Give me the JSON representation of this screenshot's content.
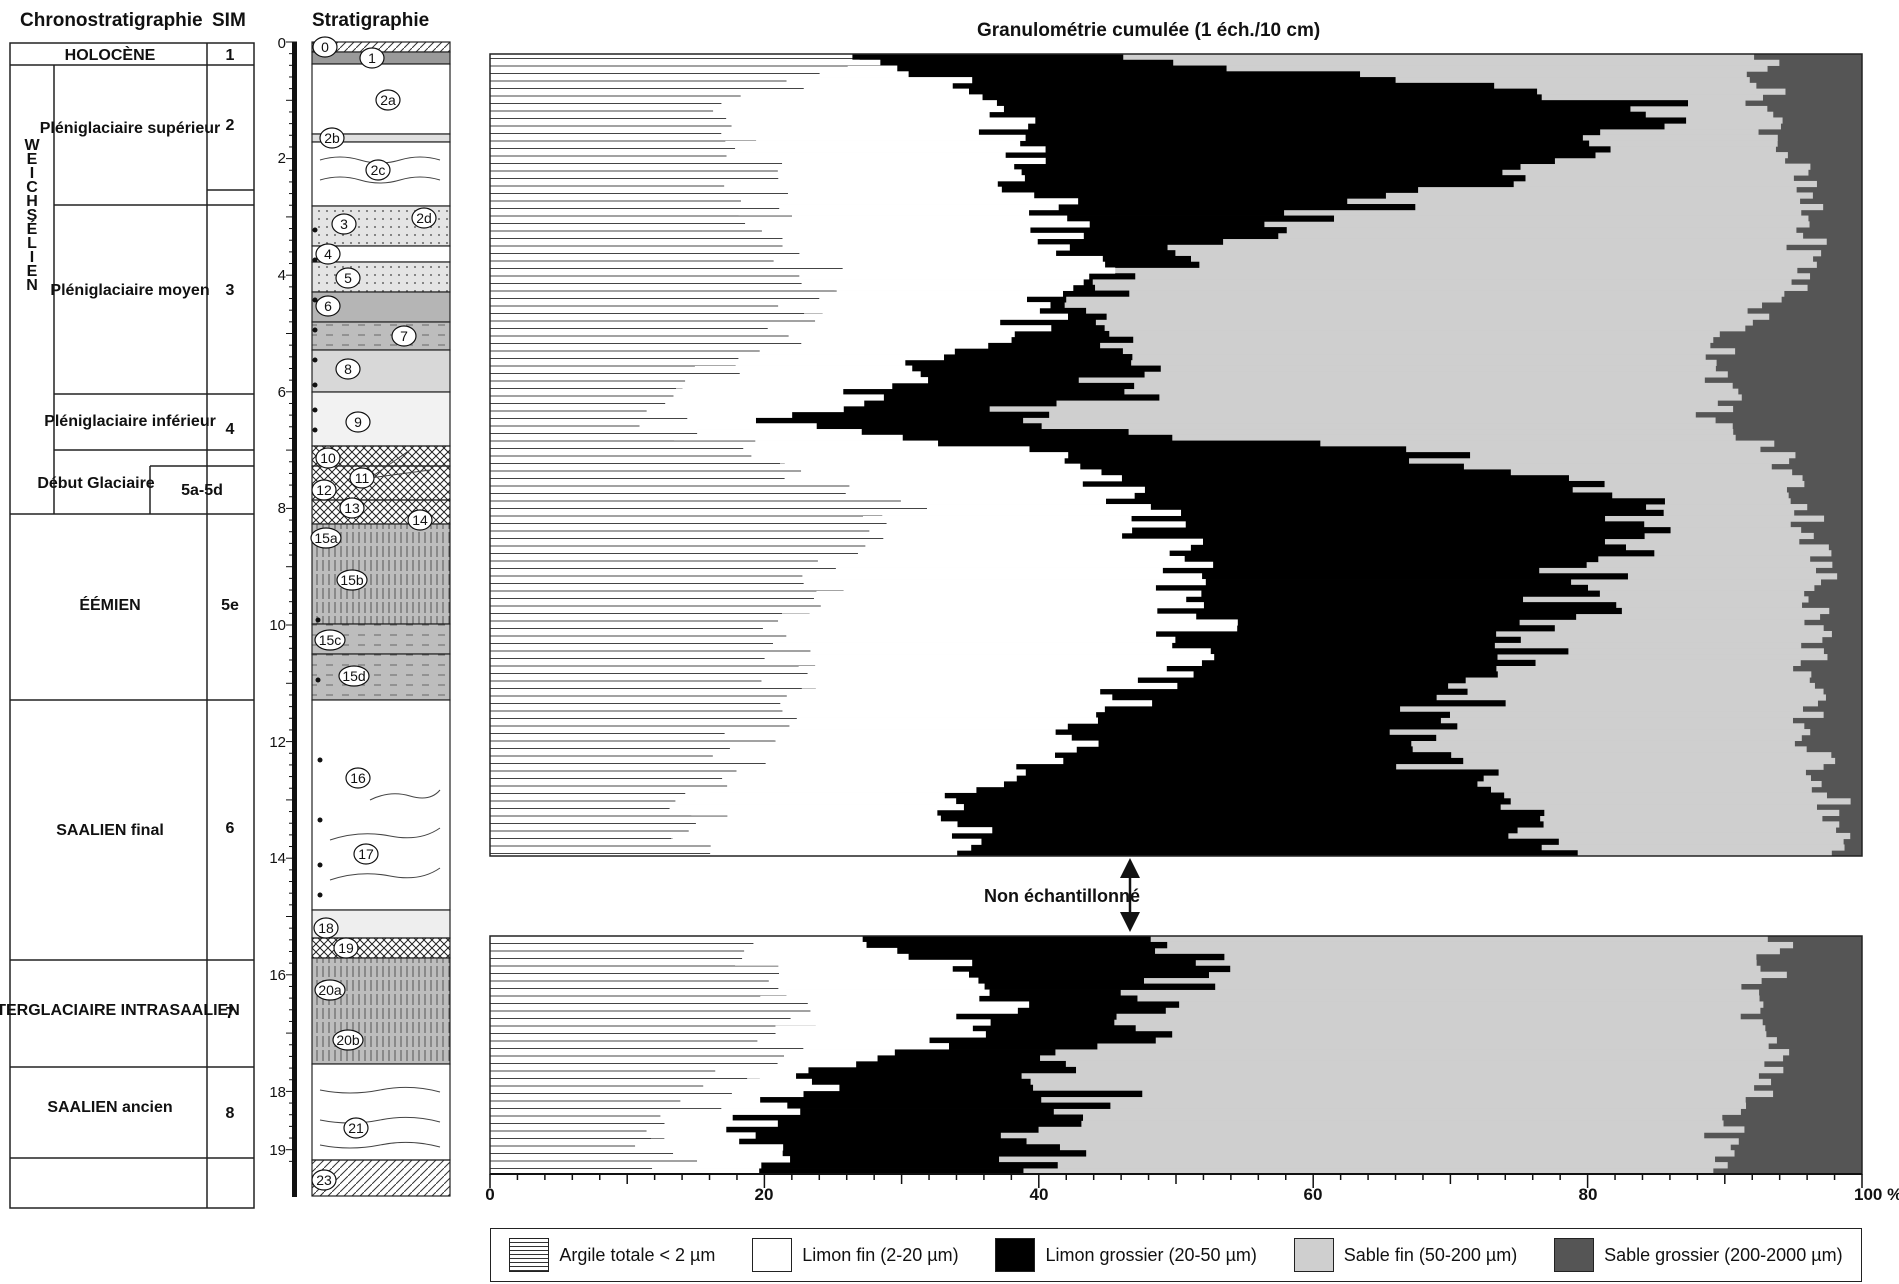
{
  "headers": {
    "chrono": "Chronostratigraphie",
    "sim": "SIM",
    "strat": "Stratigraphie",
    "chart_title": "Granulométrie cumulée (1 éch./10 cm)"
  },
  "chrono_units": [
    {
      "name": "HOLOCÈNE",
      "sim": "1"
    },
    {
      "name": "Pléniglaciaire supérieur",
      "sim": "2"
    },
    {
      "name": "Pléniglaciaire moyen",
      "sim": "3"
    },
    {
      "name": "Pléniglaciaire inférieur",
      "sim": "4"
    },
    {
      "name": "Début Glaciaire",
      "sim": "5a-5d"
    },
    {
      "name": "ÉÉMIEN",
      "sim": "5e"
    },
    {
      "name": "SAALIEN final",
      "sim": "6"
    },
    {
      "name": "INTERGLACIAIRE INTRASAALIEN",
      "sim": "7"
    },
    {
      "name": "SAALIEN ancien",
      "sim": "8"
    }
  ],
  "weichselien_label": "WEICHSÉLIEN",
  "depth_ticks": [
    "0",
    "2",
    "4",
    "6",
    "8",
    "10",
    "12",
    "14",
    "16",
    "18",
    "19"
  ],
  "strat_layers": [
    "0",
    "1",
    "2a",
    "2b",
    "2c",
    "2d",
    "3",
    "4",
    "5",
    "6",
    "7",
    "8",
    "9",
    "10",
    "11",
    "12",
    "13",
    "14",
    "15a",
    "15b",
    "15c",
    "15d",
    "16",
    "17",
    "18",
    "19",
    "20a",
    "20b",
    "21",
    "23"
  ],
  "non_sampled_label": "Non échantillonné",
  "legend": [
    {
      "key": "clay",
      "label": "Argile totale < 2 µm"
    },
    {
      "key": "fine_silt",
      "label": "Limon fin (2-20 µm)"
    },
    {
      "key": "coarse_silt",
      "label": "Limon grossier (20-50 µm)"
    },
    {
      "key": "fine_sand",
      "label": "Sable fin (50-200 µm)"
    },
    {
      "key": "coarse_sand",
      "label": "Sable grossier (200-2000 µm)"
    }
  ],
  "colors": {
    "clay": "#ffffff",
    "fine_silt": "#ffffff",
    "coarse_silt": "#000000",
    "fine_sand": "#cfcfcf",
    "coarse_sand": "#555555"
  },
  "chart_data": {
    "type": "area",
    "title": "Granulométrie cumulée (1 éch./10 cm)",
    "x_axis": {
      "ticks": [
        "0",
        "20",
        "40",
        "60",
        "80",
        "100 %"
      ],
      "range": [
        0,
        100
      ],
      "unit": "%"
    },
    "depth_unit": "m",
    "series_names": [
      "Argile totale < 2 µm",
      "Limon fin (2-20 µm)",
      "Limon grossier (20-50 µm)",
      "Sable fin (50-200 µm)",
      "Sable grossier (200-2000 µm)"
    ],
    "panels": [
      {
        "name": "upper",
        "depth_range": [
          0.1,
          14
        ],
        "depth": [
          0.2,
          1,
          2,
          3,
          4,
          5,
          6,
          6.5,
          7,
          8,
          9,
          10,
          11,
          12,
          13,
          14
        ],
        "clay_cum": [
          28,
          16,
          19,
          20,
          24,
          22,
          13,
          12,
          19,
          30,
          25,
          21,
          22,
          19,
          15,
          16
        ],
        "fine_silt_cum": [
          29,
          37,
          38,
          42,
          44,
          37,
          27,
          20,
          40,
          48,
          50,
          52,
          48,
          43,
          35,
          36
        ],
        "coarse_silt_cum": [
          48,
          87,
          80,
          58,
          45,
          46,
          46,
          34,
          68,
          86,
          80,
          78,
          72,
          68,
          72,
          77
        ],
        "fine_sand_cum": [
          93,
          93,
          95,
          96,
          96,
          90,
          90,
          89,
          94,
          96,
          97,
          97,
          96,
          96,
          98,
          98
        ]
      },
      {
        "name": "lower",
        "depth_range": [
          15.3,
          19.3
        ],
        "depth": [
          15.5,
          16,
          16.5,
          17,
          17.5,
          18,
          18.5,
          19.2
        ],
        "clay_cum": [
          18,
          20,
          23,
          21,
          19,
          16,
          12,
          13
        ],
        "fine_silt_cum": [
          30,
          35,
          37,
          33,
          26,
          22,
          20,
          20
        ],
        "coarse_silt_cum": [
          50,
          51,
          48,
          50,
          40,
          44,
          40,
          40
        ],
        "fine_sand_cum": [
          94,
          93,
          92,
          94,
          93,
          92,
          90,
          90
        ]
      }
    ]
  }
}
